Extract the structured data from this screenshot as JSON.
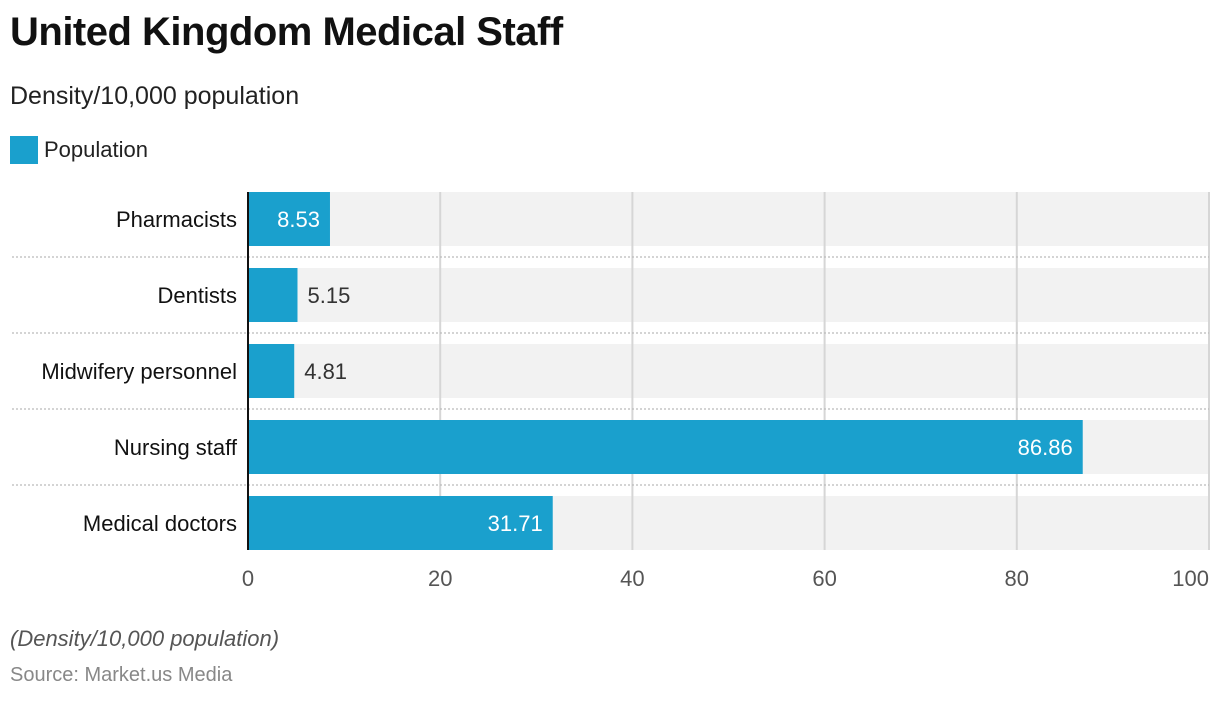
{
  "chart_data": {
    "type": "bar",
    "orientation": "horizontal",
    "title": "United Kingdom Medical Staff",
    "subtitle": "Density/10,000 population",
    "categories": [
      "Pharmacists",
      "Dentists",
      "Midwifery personnel",
      "Nursing staff",
      "Medical doctors"
    ],
    "series": [
      {
        "name": "Population",
        "values": [
          8.53,
          5.15,
          4.81,
          86.86,
          31.71
        ],
        "color": "#1aa0cd"
      }
    ],
    "value_labels": [
      "8.53",
      "5.15",
      "4.81",
      "86.86",
      "31.71"
    ],
    "xlim": [
      0,
      100
    ],
    "x_ticks": [
      0,
      20,
      40,
      60,
      80,
      100
    ],
    "x_tick_labels": [
      "0",
      "20",
      "40",
      "60",
      "80",
      "100"
    ],
    "xlabel": "",
    "ylabel": "",
    "grid": true,
    "legend_position": "top-left",
    "notes": "(Density/10,000 population)",
    "source": "Source: Market.us Media"
  },
  "colors": {
    "bar": "#1aa0cd",
    "track": "#f2f2f2",
    "grid": "#d6d6d6",
    "axis": "#111111"
  }
}
